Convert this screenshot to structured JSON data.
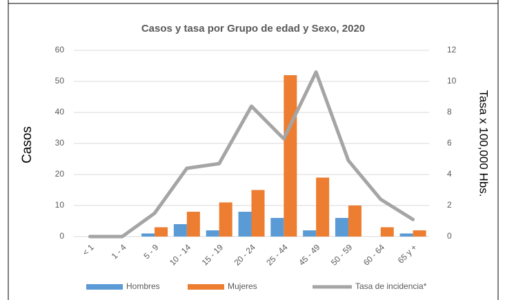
{
  "chart_data": {
    "type": "bar",
    "title": "Casos y tasa por Grupo de edad y Sexo, 2020",
    "y_label": "Casos",
    "y2_label": "Tasa x 100,000 Hbs.",
    "categories": [
      "< 1",
      "1 - 4",
      "5 - 9",
      "10 - 14",
      "15 - 19",
      "20 - 24",
      "25 - 44",
      "45 - 49",
      "50 - 59",
      "60 - 64",
      "65 y +"
    ],
    "series": [
      {
        "name": "Hombres",
        "color": "#5b9bd5",
        "values": [
          0,
          0,
          1,
          4,
          2,
          8,
          6,
          2,
          6,
          0,
          1
        ]
      },
      {
        "name": "Mujeres",
        "color": "#ed7d31",
        "values": [
          0,
          0,
          3,
          8,
          11,
          15,
          52,
          19,
          10,
          3,
          2
        ]
      },
      {
        "name": "Tasa de incidencia*",
        "color": "#a5a5a5",
        "type": "line",
        "axis": "y2",
        "values": [
          0,
          0,
          1.5,
          4.4,
          4.7,
          8.4,
          6.3,
          10.6,
          4.9,
          2.4,
          1.1
        ]
      }
    ],
    "ylim": [
      0,
      60
    ],
    "yticks": [
      0,
      10,
      20,
      30,
      40,
      50,
      60
    ],
    "y2lim": [
      0,
      12
    ],
    "y2ticks": [
      0,
      2,
      4,
      6,
      8,
      10,
      12
    ],
    "grid": true,
    "legend": "bottom"
  }
}
